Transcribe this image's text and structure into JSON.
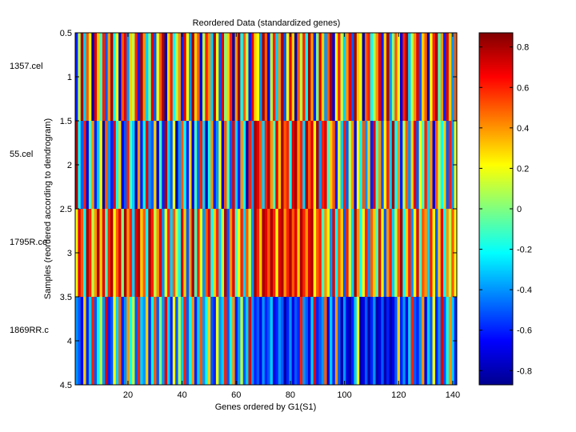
{
  "chart_data": {
    "type": "heatmap",
    "title": "Reordered Data (standardized genes)",
    "xlabel": "Genes ordered by G1(S1)",
    "ylabel": "Samples (reordered according to dendrogram)",
    "xlim": [
      0.5,
      141.5
    ],
    "ylim": [
      0.5,
      4.5
    ],
    "x_ticks": [
      "20",
      "40",
      "60",
      "80",
      "100",
      "120",
      "140"
    ],
    "y_ticks": [
      "0.5",
      "1",
      "1.5",
      "2",
      "2.5",
      "3",
      "3.5",
      "4",
      "4.5"
    ],
    "row_labels": [
      "1357.cel",
      "55.cel",
      "1795R.ce",
      "1869RR.c"
    ],
    "n_columns": 141,
    "colormap": "jet",
    "colorbar": {
      "range": [
        -0.87,
        0.87
      ],
      "ticks": [
        "0.8",
        "0.6",
        "0.4",
        "0.2",
        "0",
        "-0.2",
        "-0.4",
        "-0.6",
        "-0.8"
      ]
    },
    "rows": [
      [
        -0.6,
        0.1,
        0.8,
        -0.3,
        0.5,
        0.2,
        -0.8,
        0.7,
        0.3,
        -0.1,
        0.6,
        -0.5,
        0.4,
        0.8,
        -0.2,
        0.2,
        -0.7,
        0.5,
        0.7,
        -0.4,
        0.3,
        0.1,
        0.6,
        -0.6,
        0.8,
        0.4,
        -0.3,
        0.0,
        0.7,
        -0.5,
        0.2,
        0.5,
        0.8,
        -0.8,
        0.3,
        0.6,
        -0.2,
        0.1,
        0.4,
        -0.6,
        0.7,
        0.2,
        -0.4,
        0.8,
        0.3,
        0.5,
        -0.7,
        0.1,
        0.6,
        0.4,
        -0.3,
        0.8,
        0.2,
        -0.5,
        0.7,
        0.0,
        0.3,
        0.6,
        -0.8,
        0.4,
        0.8,
        -0.2,
        0.5,
        0.1,
        -0.6,
        0.7,
        0.3,
        0.2,
        -0.4,
        0.8,
        0.5,
        -0.7,
        0.1,
        0.6,
        -0.3,
        0.4,
        0.8,
        -0.5,
        0.2,
        0.7,
        0.3,
        -0.8,
        0.5,
        0.1,
        0.6,
        -0.2,
        0.8,
        0.4,
        -0.6,
        0.0,
        0.7,
        0.3,
        -0.4,
        0.5,
        0.8,
        -0.7,
        0.2,
        0.6,
        0.1,
        -0.3,
        0.4,
        0.7,
        -0.5,
        0.8,
        0.3,
        0.2,
        -0.8,
        0.5,
        0.6,
        -0.2,
        0.1,
        0.4,
        0.7,
        -0.6,
        0.3,
        0.8,
        -0.4,
        0.0,
        0.5,
        0.2,
        -0.7,
        0.6,
        0.8,
        -0.3,
        0.1,
        0.4,
        0.7,
        -0.5,
        0.3,
        0.5,
        -0.8,
        0.2,
        0.6,
        0.8,
        -0.1,
        0.4,
        -0.6,
        0.7,
        0.3,
        -0.4,
        0.5
      ],
      [
        0.8,
        -0.2,
        -0.5,
        0.6,
        -0.7,
        -0.1,
        0.4,
        -0.6,
        -0.3,
        0.2,
        -0.8,
        0.5,
        -0.4,
        -0.6,
        0.7,
        -0.2,
        0.3,
        -0.7,
        -0.5,
        0.6,
        -0.1,
        -0.3,
        -0.8,
        0.4,
        -0.6,
        -0.2,
        0.7,
        -0.4,
        -0.5,
        0.3,
        -0.7,
        -0.1,
        -0.6,
        0.8,
        -0.3,
        -0.5,
        0.2,
        -0.8,
        -0.4,
        0.5,
        -0.2,
        -0.6,
        0.3,
        -0.7,
        -0.1,
        -0.5,
        0.6,
        -0.3,
        -0.8,
        -0.2,
        0.4,
        -0.6,
        -0.4,
        0.2,
        -0.7,
        0.5,
        -0.1,
        -0.5,
        0.7,
        -0.3,
        -0.6,
        0.4,
        -0.2,
        -0.8,
        0.6,
        -0.4,
        0.8,
        0.7,
        0.5,
        -0.3,
        0.6,
        0.8,
        0.4,
        -0.1,
        0.7,
        0.3,
        0.8,
        0.5,
        0.6,
        -0.2,
        0.7,
        0.8,
        0.4,
        0.6,
        -0.3,
        0.8,
        0.5,
        0.7,
        0.2,
        0.8,
        -0.4,
        0.6,
        0.7,
        -0.1,
        0.3,
        0.5,
        -0.6,
        0.2,
        -0.3,
        0.6,
        -0.5,
        0.1,
        0.4,
        -0.7,
        0.2,
        -0.2,
        0.5,
        -0.4,
        0.3,
        -0.6,
        0.7,
        -0.1,
        0.4,
        -0.5,
        0.2,
        0.6,
        -0.3,
        0.8,
        -0.2,
        0.4,
        -0.6,
        0.1,
        0.5,
        -0.4,
        0.3,
        0.7,
        -0.5,
        0.2,
        -0.1,
        0.6,
        -0.3,
        0.4,
        -0.7,
        0.5,
        0.1,
        -0.2,
        0.3,
        -0.5,
        0.6,
        -0.4,
        0.2
      ],
      [
        0.2,
        0.7,
        0.5,
        -0.2,
        0.8,
        0.6,
        0.1,
        0.4,
        0.8,
        0.3,
        0.7,
        -0.1,
        0.6,
        0.8,
        0.2,
        0.5,
        0.7,
        0.0,
        0.8,
        0.4,
        0.6,
        -0.3,
        0.7,
        0.8,
        0.3,
        0.5,
        -0.2,
        0.8,
        0.6,
        0.1,
        0.4,
        0.7,
        -0.4,
        0.2,
        0.6,
        -0.3,
        0.5,
        0.1,
        -0.2,
        0.7,
        0.3,
        -0.5,
        0.4,
        0.8,
        -0.1,
        0.6,
        0.2,
        -0.4,
        0.5,
        0.7,
        -0.2,
        0.3,
        0.6,
        -0.3,
        0.1,
        0.8,
        -0.5,
        0.4,
        0.7,
        -0.1,
        0.2,
        0.6,
        -0.3,
        0.5,
        0.1,
        -0.4,
        0.8,
        0.6,
        0.3,
        0.8,
        0.7,
        0.5,
        0.8,
        0.6,
        0.2,
        0.7,
        0.8,
        0.4,
        0.6,
        0.8,
        0.5,
        0.7,
        0.3,
        0.8,
        0.6,
        0.4,
        0.7,
        0.8,
        0.2,
        0.5,
        0.6,
        -0.1,
        0.4,
        0.2,
        -0.4,
        0.7,
        -0.2,
        0.5,
        0.3,
        -0.5,
        0.6,
        0.1,
        -0.3,
        0.8,
        0.4,
        -0.2,
        0.2,
        0.6,
        -0.4,
        0.5,
        0.3,
        -0.1,
        0.7,
        0.2,
        -0.5,
        0.4,
        0.6,
        -0.3,
        0.1,
        0.5,
        0.8,
        -0.2,
        0.3,
        0.6,
        -0.4,
        0.2,
        0.7,
        -0.1,
        0.5,
        0.4,
        -0.3,
        0.6,
        0.2,
        -0.5,
        0.3,
        0.7,
        -0.2,
        0.4,
        0.1,
        0.5,
        0.2
      ],
      [
        -0.4,
        -0.5,
        -0.7,
        0.3,
        -0.6,
        -0.3,
        0.6,
        -0.5,
        -0.2,
        0.1,
        -0.4,
        0.7,
        -0.6,
        -0.5,
        0.2,
        -0.3,
        0.5,
        -0.6,
        -0.4,
        0.4,
        -0.2,
        0.1,
        -0.5,
        0.6,
        -0.3,
        -0.4,
        0.3,
        -0.6,
        -0.2,
        0.5,
        -0.5,
        0.0,
        -0.4,
        0.7,
        -0.3,
        -0.6,
        0.2,
        -0.5,
        0.1,
        -0.3,
        0.6,
        -0.5,
        -0.2,
        0.4,
        -0.6,
        -0.3,
        0.5,
        -0.4,
        -0.2,
        0.3,
        -0.5,
        -0.6,
        0.2,
        -0.4,
        -0.3,
        0.6,
        -0.5,
        -0.2,
        0.4,
        -0.6,
        -0.4,
        0.1,
        -0.5,
        -0.3,
        0.7,
        -0.4,
        -0.6,
        -0.5,
        -0.7,
        -0.4,
        -0.6,
        -0.5,
        -0.3,
        -0.7,
        -0.6,
        -0.4,
        -0.5,
        -0.8,
        -0.6,
        -0.4,
        -0.7,
        -0.5,
        -0.6,
        0.6,
        -0.4,
        -0.5,
        -0.7,
        -0.3,
        0.7,
        -0.6,
        -0.5,
        -0.4,
        0.5,
        -0.7,
        -0.3,
        -0.6,
        0.4,
        -0.5,
        -0.8,
        -0.4,
        -0.7,
        -0.8,
        -0.6,
        -0.3,
        0.2,
        -0.8,
        -0.7,
        -0.5,
        -0.8,
        -0.6,
        -0.4,
        -0.8,
        -0.7,
        -0.5,
        -0.8,
        -0.6,
        -0.8,
        -0.7,
        -0.5,
        0.3,
        -0.6,
        -0.4,
        -0.7,
        -0.3,
        0.6,
        -0.5,
        -0.6,
        -0.4,
        0.4,
        -0.7,
        -0.3,
        -0.5,
        0.2,
        -0.6,
        -0.4,
        0.7,
        -0.5,
        -0.2,
        0.4,
        -0.3,
        -0.6
      ]
    ]
  }
}
